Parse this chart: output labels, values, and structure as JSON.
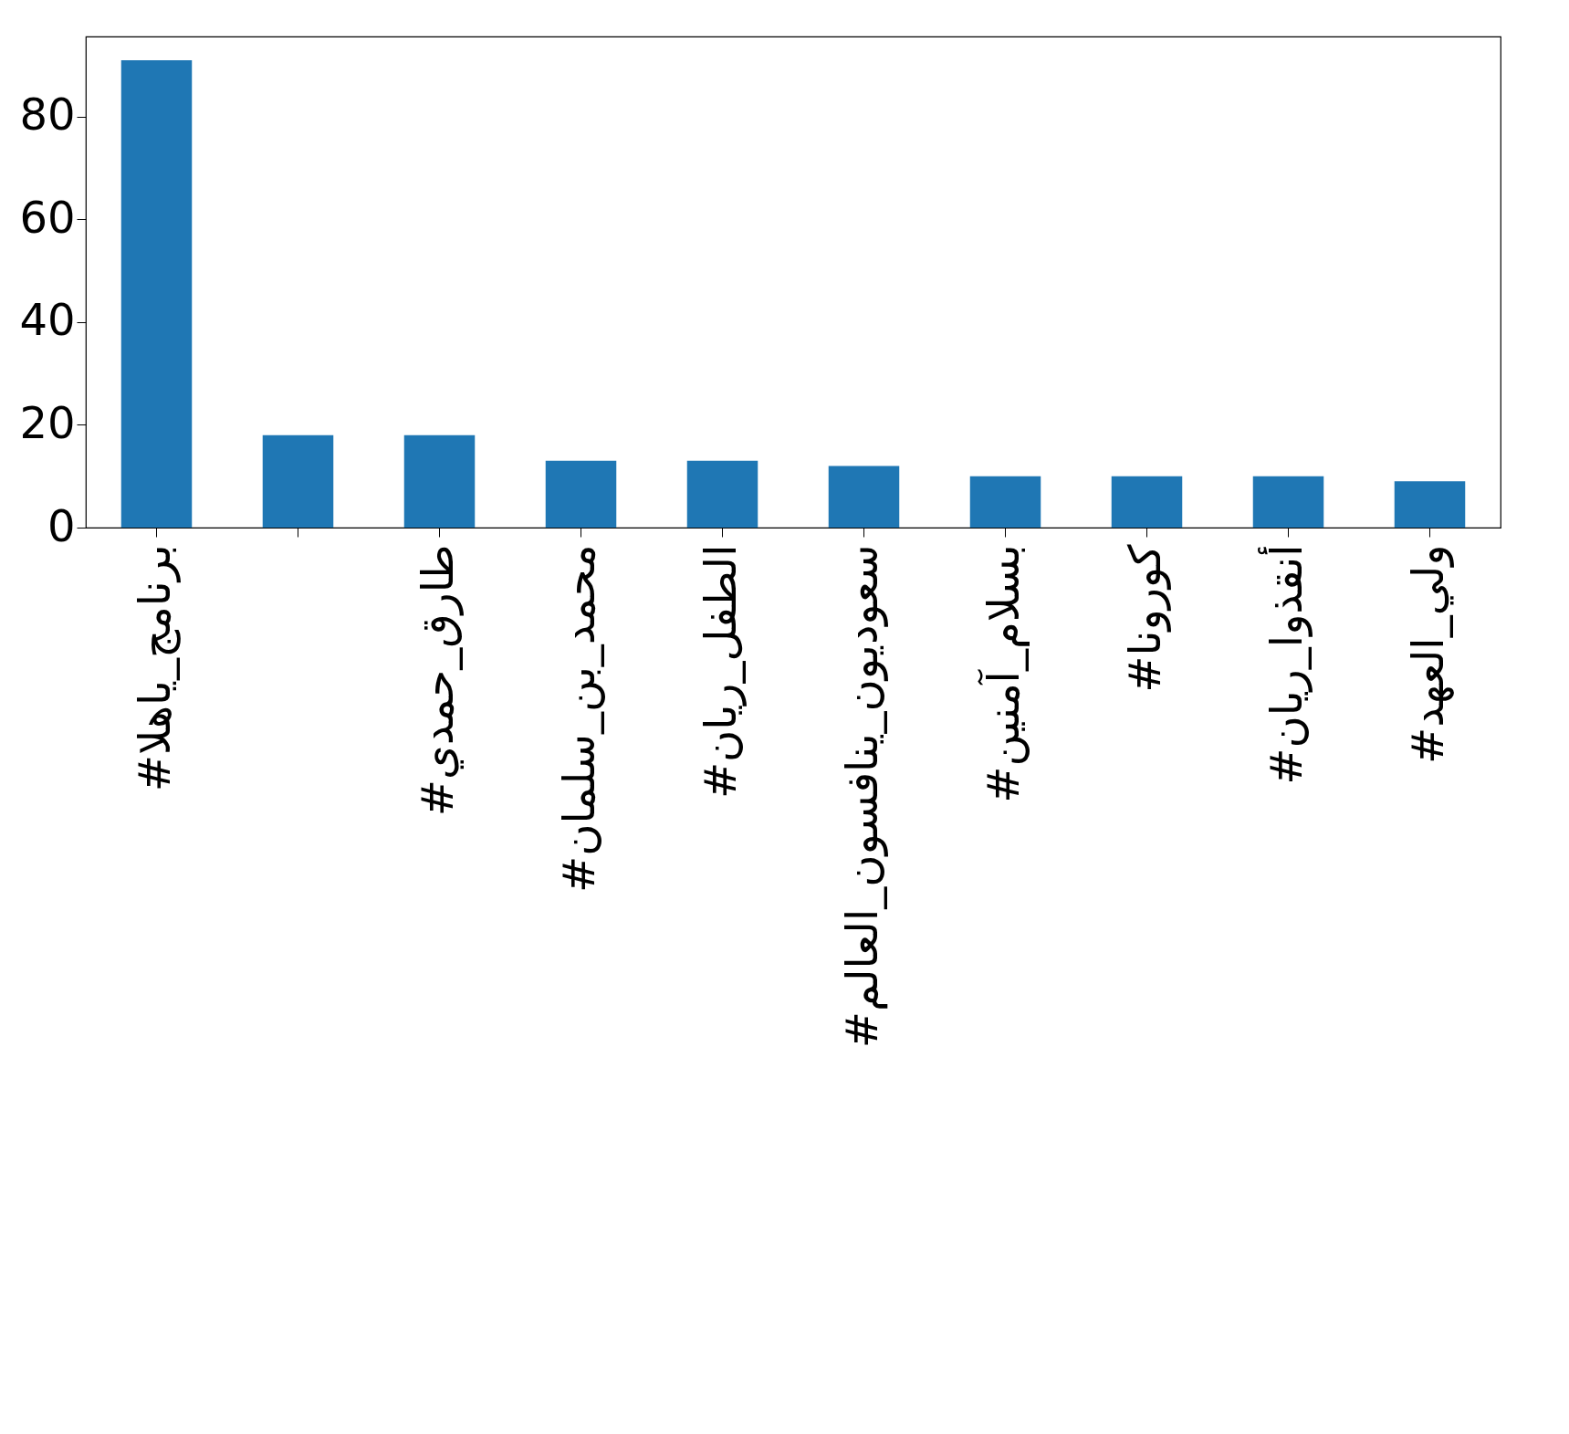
{
  "chart_data": {
    "type": "bar",
    "categories": [
      "#برنامج_ياهلا",
      null,
      "#طارق_حمدي",
      "#محمد_بن_سلمان",
      "#الطفل_ريان",
      "#سعوديون_ينافسون_العالم",
      "#بسلام_آمنين",
      "#كورونا",
      "#أنقذوا_ريان",
      "#ولي_العهد"
    ],
    "values": [
      91,
      18,
      18,
      13,
      13,
      12,
      10,
      10,
      10,
      9
    ],
    "color": "#1f77b4",
    "ylim": [
      0,
      95.6
    ],
    "yticks": [
      0,
      20,
      40,
      60,
      80
    ],
    "grid": false
  }
}
